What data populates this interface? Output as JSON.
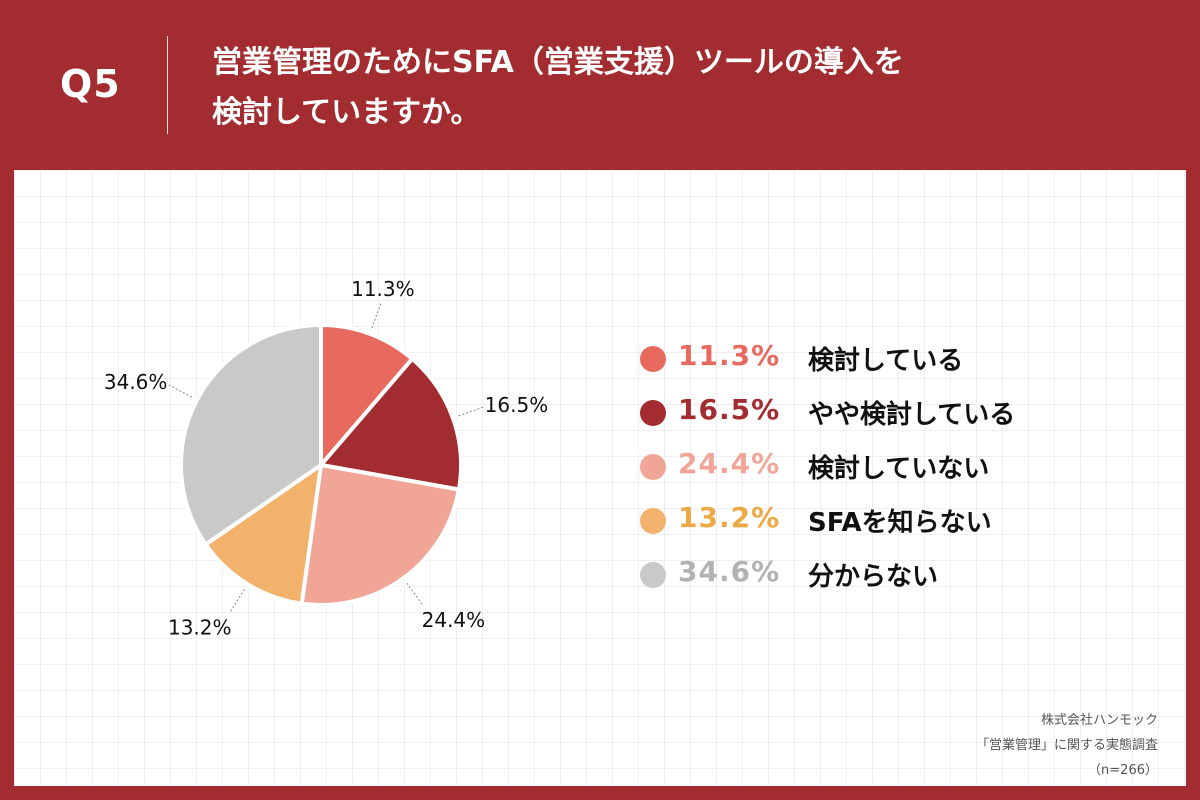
{
  "header": {
    "question": "Q5",
    "title_line1": "営業管理のためにSFA（営業支援）ツールの導入を",
    "title_line2": "検討していますか。"
  },
  "chart_data": {
    "type": "pie",
    "title": "営業管理のためにSFA（営業支援）ツールの導入を検討していますか。",
    "categories": [
      "検討している",
      "やや検討している",
      "検討していない",
      "SFAを知らない",
      "分からない"
    ],
    "values": [
      11.3,
      16.5,
      24.4,
      13.2,
      34.6
    ],
    "labels": [
      "11.3%",
      "16.5%",
      "24.4%",
      "13.2%",
      "34.6%"
    ],
    "colors": [
      "#e8695e",
      "#a22c2f",
      "#f0a597",
      "#f2b26c",
      "#c9c9c9"
    ],
    "legend_value_colors": [
      "#e8695e",
      "#a22c2f",
      "#f0a597",
      "#eda946",
      "#b2b2b2"
    ],
    "start": "12 o'clock",
    "direction": "clockwise",
    "legend_position": "right"
  },
  "legend": {
    "items": [
      {
        "value": "11.3%",
        "label": "検討している"
      },
      {
        "value": "16.5%",
        "label": "やや検討している"
      },
      {
        "value": "24.4%",
        "label": "検討していない"
      },
      {
        "value": "13.2%",
        "label": "SFAを知らない"
      },
      {
        "value": "34.6%",
        "label": "分からない"
      }
    ]
  },
  "source": {
    "company": "株式会社ハンモック",
    "survey": "「営業管理」に関する実態調査",
    "sample": "（n=266）"
  }
}
